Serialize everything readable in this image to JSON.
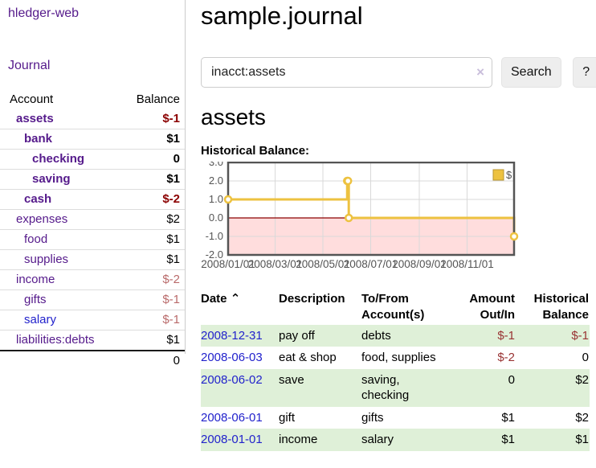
{
  "colors": {
    "accent_purple": "#551a8b",
    "link_blue": "#2222cc",
    "negative_strong": "#8b0000",
    "negative_soft": "#b96a6a",
    "negative": "#993333",
    "row_highlight_green": "#dff0d8",
    "chart_line_gold": "#edc240",
    "chart_negative_fill": "#ffdddd",
    "chart_zero_line": "#8b0000"
  },
  "sidebar": {
    "brand": "hledger-web",
    "nav_journal": "Journal",
    "table": {
      "headers": {
        "account": "Account",
        "balance": "Balance"
      },
      "rows": [
        {
          "account": "assets",
          "balance": "$-1",
          "indent": 1,
          "bold": true,
          "neg": "strong"
        },
        {
          "account": "bank",
          "balance": "$1",
          "indent": 2,
          "bold": true,
          "neg": null
        },
        {
          "account": "checking",
          "balance": "0",
          "indent": 3,
          "bold": true,
          "neg": null
        },
        {
          "account": "saving",
          "balance": "$1",
          "indent": 3,
          "bold": true,
          "neg": null
        },
        {
          "account": "cash",
          "balance": "$-2",
          "indent": 2,
          "bold": true,
          "neg": "strong"
        },
        {
          "account": "expenses",
          "balance": "$2",
          "indent": 1,
          "bold": false,
          "neg": null
        },
        {
          "account": "food",
          "balance": "$1",
          "indent": 2,
          "bold": false,
          "neg": null
        },
        {
          "account": "supplies",
          "balance": "$1",
          "indent": 2,
          "bold": false,
          "neg": null
        },
        {
          "account": "income",
          "balance": "$-2",
          "indent": 1,
          "bold": false,
          "neg": "soft"
        },
        {
          "account": "gifts",
          "balance": "$-1",
          "indent": 2,
          "bold": false,
          "neg": "soft"
        },
        {
          "account": "salary",
          "balance": "$-1",
          "indent": 2,
          "bold": false,
          "neg": "soft",
          "link_style": "unvisited"
        },
        {
          "account": "liabilities:debts",
          "balance": "$1",
          "indent": 1,
          "bold": false,
          "neg": null
        }
      ],
      "total": "0"
    }
  },
  "main": {
    "title": "sample.journal",
    "search": {
      "value": "inacct:assets",
      "clear_icon": "×",
      "search_button": "Search",
      "help_button": "?"
    },
    "account_heading": "assets",
    "chart_label": "Historical Balance:",
    "register": {
      "headers": {
        "date": "Date",
        "sort_indicator": "⌃",
        "description": "Description",
        "accounts": "To/From Account(s)",
        "amount": "Amount Out/In",
        "balance": "Historical Balance"
      },
      "rows": [
        {
          "date": "2008-12-31",
          "description": "pay off",
          "accounts": "debts",
          "amount": "$-1",
          "balance": "$-1",
          "amount_neg": true,
          "balance_neg": true
        },
        {
          "date": "2008-06-03",
          "description": "eat & shop",
          "accounts": "food, supplies",
          "amount": "$-2",
          "balance": "0",
          "amount_neg": true,
          "balance_neg": false
        },
        {
          "date": "2008-06-02",
          "description": "save",
          "accounts": "saving, checking",
          "amount": "0",
          "balance": "$2",
          "amount_neg": false,
          "balance_neg": false
        },
        {
          "date": "2008-06-01",
          "description": "gift",
          "accounts": "gifts",
          "amount": "$1",
          "balance": "$2",
          "amount_neg": false,
          "balance_neg": false
        },
        {
          "date": "2008-01-01",
          "description": "income",
          "accounts": "salary",
          "amount": "$1",
          "balance": "$1",
          "amount_neg": false,
          "balance_neg": false
        }
      ]
    }
  },
  "chart_data": {
    "type": "line",
    "title": "Historical Balance:",
    "step": true,
    "series": [
      {
        "name": "$",
        "color": "#edc240",
        "points": [
          [
            "2008-01-01",
            1
          ],
          [
            "2008-06-01",
            2
          ],
          [
            "2008-06-02",
            2
          ],
          [
            "2008-06-03",
            0
          ],
          [
            "2008-12-31",
            -1
          ]
        ]
      }
    ],
    "x_ticks": [
      "2008/01/01",
      "2008/03/01",
      "2008/05/01",
      "2008/07/01",
      "2008/09/01",
      "2008/11/01"
    ],
    "y_ticks": [
      "3.0",
      "2.0",
      "1.0",
      "0.0",
      "-1.0",
      "-2.0"
    ],
    "xlim": [
      "2008-01-01",
      "2008-12-31"
    ],
    "ylim": [
      -2,
      3
    ],
    "grid": true,
    "legend_position": "top-right",
    "negative_region_color": "#ffdddd",
    "zero_line_color": "#8b0000",
    "grid_color": "#d9d9d9",
    "border_color": "#545454",
    "tick_label_color": "#545454"
  }
}
